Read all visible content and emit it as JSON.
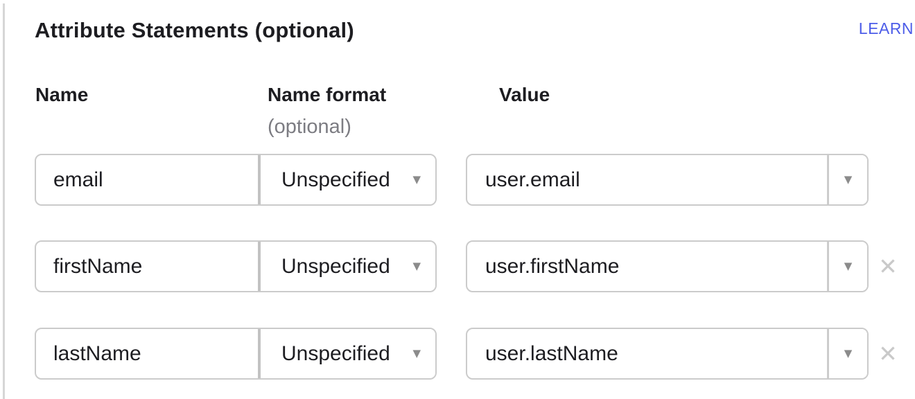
{
  "panel": {
    "title": "Attribute Statements (optional)",
    "learn_link": "LEARN"
  },
  "table": {
    "columns": {
      "name": "Name",
      "name_format": "Name format",
      "name_format_note": "(optional)",
      "value": "Value"
    },
    "rows": [
      {
        "name": "email",
        "name_format": "Unspecified",
        "value": "user.email",
        "removable": false
      },
      {
        "name": "firstName",
        "name_format": "Unspecified",
        "value": "user.firstName",
        "removable": true
      },
      {
        "name": "lastName",
        "name_format": "Unspecified",
        "value": "user.lastName",
        "removable": true
      }
    ]
  },
  "icons": {
    "caret": "▼",
    "remove": "✕"
  },
  "colors": {
    "link_blue": "#4c5ce8",
    "text": "#1d1d21",
    "muted_text": "#7c7c82",
    "border": "#cbcbcb",
    "divider": "#c2c2c2",
    "caret_gray": "#8b8b8b",
    "remove_gray": "#c9c9c9"
  }
}
